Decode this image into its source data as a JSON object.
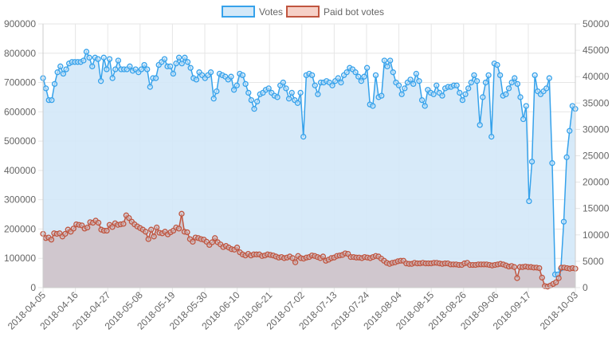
{
  "chart_data": {
    "type": "line",
    "legend": {
      "position": "top",
      "items": [
        "Votes",
        "Paid bot votes"
      ]
    },
    "colors": {
      "votes_line": "#36a2eb",
      "votes_fill": "#d3e8f8",
      "bot_line": "#c0553f",
      "bot_fill": "#cfc3c9",
      "grid": "#e6e6e6"
    },
    "y_left": {
      "ticks": [
        "0",
        "100000",
        "200000",
        "300000",
        "400000",
        "500000",
        "600000",
        "700000",
        "800000",
        "900000"
      ],
      "min": 0,
      "max": 900000
    },
    "y_right": {
      "ticks": [
        "0",
        "5000",
        "10000",
        "15000",
        "20000",
        "25000",
        "30000",
        "35000",
        "40000",
        "45000",
        "50000"
      ],
      "min": 0,
      "max": 50000
    },
    "x_start": "2018-04-05",
    "x_ticks": [
      "2018-04-05",
      "2018-04-16",
      "2018-04-27",
      "2018-05-08",
      "2018-05-19",
      "2018-05-30",
      "2018-06-10",
      "2018-06-21",
      "2018-07-02",
      "2018-07-13",
      "2018-07-24",
      "2018-08-04",
      "2018-08-15",
      "2018-08-26",
      "2018-09-06",
      "2018-09-17",
      "2018-10-03"
    ],
    "series": [
      {
        "name": "Votes",
        "axis": "left",
        "values": [
          715000,
          680000,
          640000,
          640000,
          695000,
          735000,
          755000,
          730000,
          745000,
          765000,
          770000,
          770000,
          770000,
          770000,
          775000,
          805000,
          785000,
          755000,
          785000,
          780000,
          705000,
          785000,
          745000,
          780000,
          715000,
          745000,
          775000,
          745000,
          745000,
          745000,
          755000,
          740000,
          745000,
          735000,
          745000,
          760000,
          745000,
          685000,
          715000,
          715000,
          760000,
          770000,
          780000,
          755000,
          755000,
          730000,
          765000,
          785000,
          765000,
          785000,
          770000,
          750000,
          715000,
          710000,
          735000,
          725000,
          715000,
          725000,
          735000,
          645000,
          670000,
          730000,
          725000,
          720000,
          710000,
          720000,
          675000,
          690000,
          730000,
          725000,
          695000,
          665000,
          640000,
          610000,
          635000,
          660000,
          665000,
          675000,
          680000,
          665000,
          655000,
          650000,
          690000,
          700000,
          680000,
          645000,
          665000,
          640000,
          630000,
          665000,
          515000,
          725000,
          730000,
          725000,
          690000,
          660000,
          700000,
          700000,
          705000,
          700000,
          690000,
          705000,
          715000,
          700000,
          725000,
          735000,
          750000,
          745000,
          735000,
          720000,
          705000,
          720000,
          750000,
          625000,
          620000,
          725000,
          650000,
          655000,
          775000,
          755000,
          775000,
          735000,
          700000,
          690000,
          660000,
          680000,
          700000,
          710000,
          695000,
          730000,
          705000,
          640000,
          620000,
          675000,
          665000,
          660000,
          690000,
          665000,
          655000,
          680000,
          685000,
          685000,
          690000,
          690000,
          665000,
          640000,
          660000,
          680000,
          700000,
          725000,
          705000,
          555000,
          650000,
          700000,
          725000,
          515000,
          765000,
          760000,
          725000,
          655000,
          660000,
          680000,
          700000,
          715000,
          695000,
          650000,
          575000,
          620000,
          295000,
          430000,
          725000,
          670000,
          660000,
          670000,
          680000,
          715000,
          425000,
          45000,
          45000,
          65000,
          225000,
          445000,
          535000,
          620000,
          610000
        ]
      },
      {
        "name": "Paid bot votes",
        "axis": "right",
        "values": [
          10200,
          9400,
          9500,
          9100,
          10300,
          10200,
          10300,
          9700,
          10200,
          11000,
          10600,
          11200,
          12000,
          11900,
          11800,
          11200,
          11400,
          12400,
          12300,
          12700,
          12300,
          11000,
          10800,
          10800,
          11900,
          11500,
          12200,
          11900,
          12000,
          12100,
          13700,
          13200,
          12500,
          12000,
          11600,
          11300,
          11000,
          10600,
          9200,
          11000,
          9700,
          11400,
          10400,
          10300,
          10600,
          10100,
          10500,
          10800,
          11400,
          11200,
          14000,
          10600,
          10500,
          9200,
          8700,
          9500,
          9400,
          9200,
          9100,
          8700,
          8100,
          8600,
          9400,
          8600,
          8200,
          7700,
          7900,
          7600,
          7300,
          7200,
          7600,
          6700,
          6300,
          6100,
          6400,
          6100,
          6300,
          6300,
          6300,
          6000,
          6100,
          6300,
          6200,
          6100,
          5900,
          5700,
          5800,
          5600,
          5700,
          5900,
          5600,
          4800,
          6000,
          5600,
          5500,
          5700,
          5800,
          6100,
          6000,
          5800,
          5600,
          5900,
          5100,
          5300,
          5600,
          5700,
          6000,
          6100,
          6200,
          6500,
          6400,
          5800,
          5800,
          5700,
          5700,
          5600,
          5800,
          5700,
          5600,
          5800,
          6000,
          5900,
          5500,
          5100,
          4700,
          4500,
          4700,
          4800,
          5000,
          5100,
          5100,
          4600,
          4500,
          4500,
          4700,
          4600,
          4600,
          4700,
          4600,
          4600,
          4600,
          4700,
          4700,
          4600,
          4500,
          4600,
          4600,
          4400,
          4400,
          4400,
          4300,
          4300,
          4600,
          4700,
          4300,
          4300,
          4300,
          4400,
          4400,
          4400,
          4400,
          4300,
          4200,
          4300,
          4400,
          4500,
          4400,
          4200,
          4000,
          4100,
          3900,
          1800,
          3900,
          3900,
          4000,
          3900,
          3900,
          3800,
          3800,
          3700,
          1900,
          300,
          200,
          400,
          700,
          1000,
          1800,
          3800,
          3800,
          3700,
          3600,
          3700,
          3600
        ]
      }
    ]
  }
}
